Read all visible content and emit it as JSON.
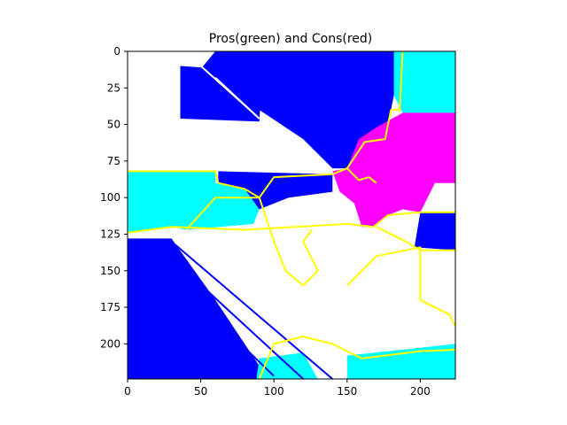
{
  "chart_data": {
    "type": "heatmap",
    "title": "Pros(green) and Cons(red)",
    "xlabel": "",
    "ylabel": "",
    "x_range": [
      0,
      224
    ],
    "y_range": [
      0,
      224
    ],
    "y_inverted": true,
    "x_ticks": [
      0,
      50,
      100,
      150,
      200
    ],
    "y_ticks": [
      0,
      25,
      50,
      75,
      100,
      125,
      150,
      175,
      200
    ],
    "grid": false,
    "legend": "none",
    "colors": {
      "blue": "#0000ff",
      "cyan": "#00ffff",
      "magenta": "#ff00ff",
      "yellow": "#ffff00",
      "white": "#ffffff"
    },
    "regions": [
      {
        "color": "blue",
        "polygon": [
          [
            60,
            0
          ],
          [
            190,
            0
          ],
          [
            184,
            20
          ],
          [
            180,
            40
          ],
          [
            176,
            60
          ],
          [
            162,
            62
          ],
          [
            150,
            80
          ],
          [
            140,
            80
          ],
          [
            120,
            60
          ],
          [
            90,
            40
          ],
          [
            60,
            30
          ],
          [
            45,
            18
          ]
        ]
      },
      {
        "color": "blue",
        "polygon": [
          [
            36,
            10
          ],
          [
            92,
            14
          ],
          [
            90,
            48
          ],
          [
            36,
            46
          ]
        ]
      },
      {
        "color": "cyan",
        "polygon": [
          [
            182,
            0
          ],
          [
            224,
            0
          ],
          [
            224,
            42
          ],
          [
            188,
            42
          ],
          [
            182,
            30
          ]
        ]
      },
      {
        "color": "magenta",
        "polygon": [
          [
            158,
            60
          ],
          [
            170,
            52
          ],
          [
            188,
            42
          ],
          [
            224,
            42
          ],
          [
            224,
            90
          ],
          [
            210,
            90
          ],
          [
            200,
            110
          ],
          [
            188,
            108
          ],
          [
            178,
            112
          ],
          [
            168,
            120
          ],
          [
            160,
            120
          ],
          [
            155,
            104
          ],
          [
            145,
            96
          ],
          [
            140,
            82
          ],
          [
            150,
            80
          ]
        ]
      },
      {
        "color": "blue",
        "polygon": [
          [
            200,
            110
          ],
          [
            224,
            110
          ],
          [
            224,
            136
          ],
          [
            196,
            134
          ]
        ]
      },
      {
        "color": "cyan",
        "polygon": [
          [
            0,
            82
          ],
          [
            60,
            82
          ],
          [
            60,
            90
          ],
          [
            80,
            94
          ],
          [
            90,
            108
          ],
          [
            86,
            118
          ],
          [
            40,
            122
          ],
          [
            30,
            120
          ],
          [
            0,
            124
          ]
        ]
      },
      {
        "color": "blue",
        "polygon": [
          [
            62,
            82
          ],
          [
            140,
            84
          ],
          [
            140,
            96
          ],
          [
            110,
            100
          ],
          [
            90,
            108
          ],
          [
            80,
            94
          ],
          [
            62,
            90
          ]
        ]
      },
      {
        "color": "blue",
        "polygon": [
          [
            0,
            128
          ],
          [
            30,
            128
          ],
          [
            60,
            170
          ],
          [
            80,
            200
          ],
          [
            96,
            224
          ],
          [
            0,
            224
          ]
        ]
      },
      {
        "color": "cyan",
        "polygon": [
          [
            90,
            210
          ],
          [
            120,
            206
          ],
          [
            130,
            224
          ],
          [
            88,
            224
          ]
        ]
      },
      {
        "color": "cyan",
        "polygon": [
          [
            150,
            208
          ],
          [
            224,
            200
          ],
          [
            224,
            224
          ],
          [
            150,
            224
          ]
        ]
      }
    ],
    "contours": [
      {
        "color": "yellow",
        "points": [
          [
            0,
            82
          ],
          [
            60,
            82
          ],
          [
            62,
            90
          ],
          [
            80,
            94
          ],
          [
            90,
            100
          ],
          [
            100,
            86
          ],
          [
            140,
            84
          ],
          [
            150,
            80
          ],
          [
            162,
            62
          ],
          [
            176,
            60
          ],
          [
            180,
            40
          ],
          [
            186,
            40
          ],
          [
            188,
            0
          ]
        ]
      },
      {
        "color": "yellow",
        "points": [
          [
            0,
            124
          ],
          [
            30,
            120
          ],
          [
            80,
            122
          ],
          [
            150,
            118
          ],
          [
            168,
            120
          ],
          [
            178,
            112
          ],
          [
            200,
            110
          ],
          [
            224,
            110
          ]
        ]
      },
      {
        "color": "yellow",
        "points": [
          [
            40,
            122
          ],
          [
            60,
            100
          ],
          [
            90,
            100
          ],
          [
            100,
            130
          ],
          [
            108,
            150
          ],
          [
            120,
            160
          ],
          [
            130,
            150
          ],
          [
            120,
            130
          ],
          [
            126,
            122
          ]
        ]
      },
      {
        "color": "yellow",
        "points": [
          [
            170,
            120
          ],
          [
            190,
            130
          ],
          [
            200,
            136
          ],
          [
            224,
            136
          ]
        ]
      },
      {
        "color": "yellow",
        "points": [
          [
            150,
            160
          ],
          [
            170,
            140
          ],
          [
            200,
            134
          ],
          [
            200,
            170
          ],
          [
            220,
            180
          ],
          [
            224,
            188
          ]
        ]
      },
      {
        "color": "yellow",
        "points": [
          [
            90,
            224
          ],
          [
            100,
            200
          ],
          [
            120,
            195
          ],
          [
            140,
            200
          ],
          [
            160,
            210
          ],
          [
            200,
            205
          ],
          [
            224,
            204
          ]
        ]
      },
      {
        "color": "yellow",
        "points": [
          [
            150,
            80
          ],
          [
            158,
            88
          ],
          [
            165,
            86
          ],
          [
            170,
            90
          ]
        ]
      }
    ],
    "hatching": [
      {
        "color": "blue",
        "x1": 60,
        "y1": 18,
        "x2": 90,
        "y2": 46
      },
      {
        "color": "blue",
        "x1": 50,
        "y1": 10,
        "x2": 88,
        "y2": 44
      },
      {
        "color": "blue",
        "x1": 0,
        "y1": 140,
        "x2": 80,
        "y2": 220
      },
      {
        "color": "blue",
        "x1": 10,
        "y1": 135,
        "x2": 100,
        "y2": 222
      },
      {
        "color": "blue",
        "x1": 20,
        "y1": 132,
        "x2": 120,
        "y2": 224
      },
      {
        "color": "blue",
        "x1": 30,
        "y1": 130,
        "x2": 140,
        "y2": 224
      }
    ]
  }
}
